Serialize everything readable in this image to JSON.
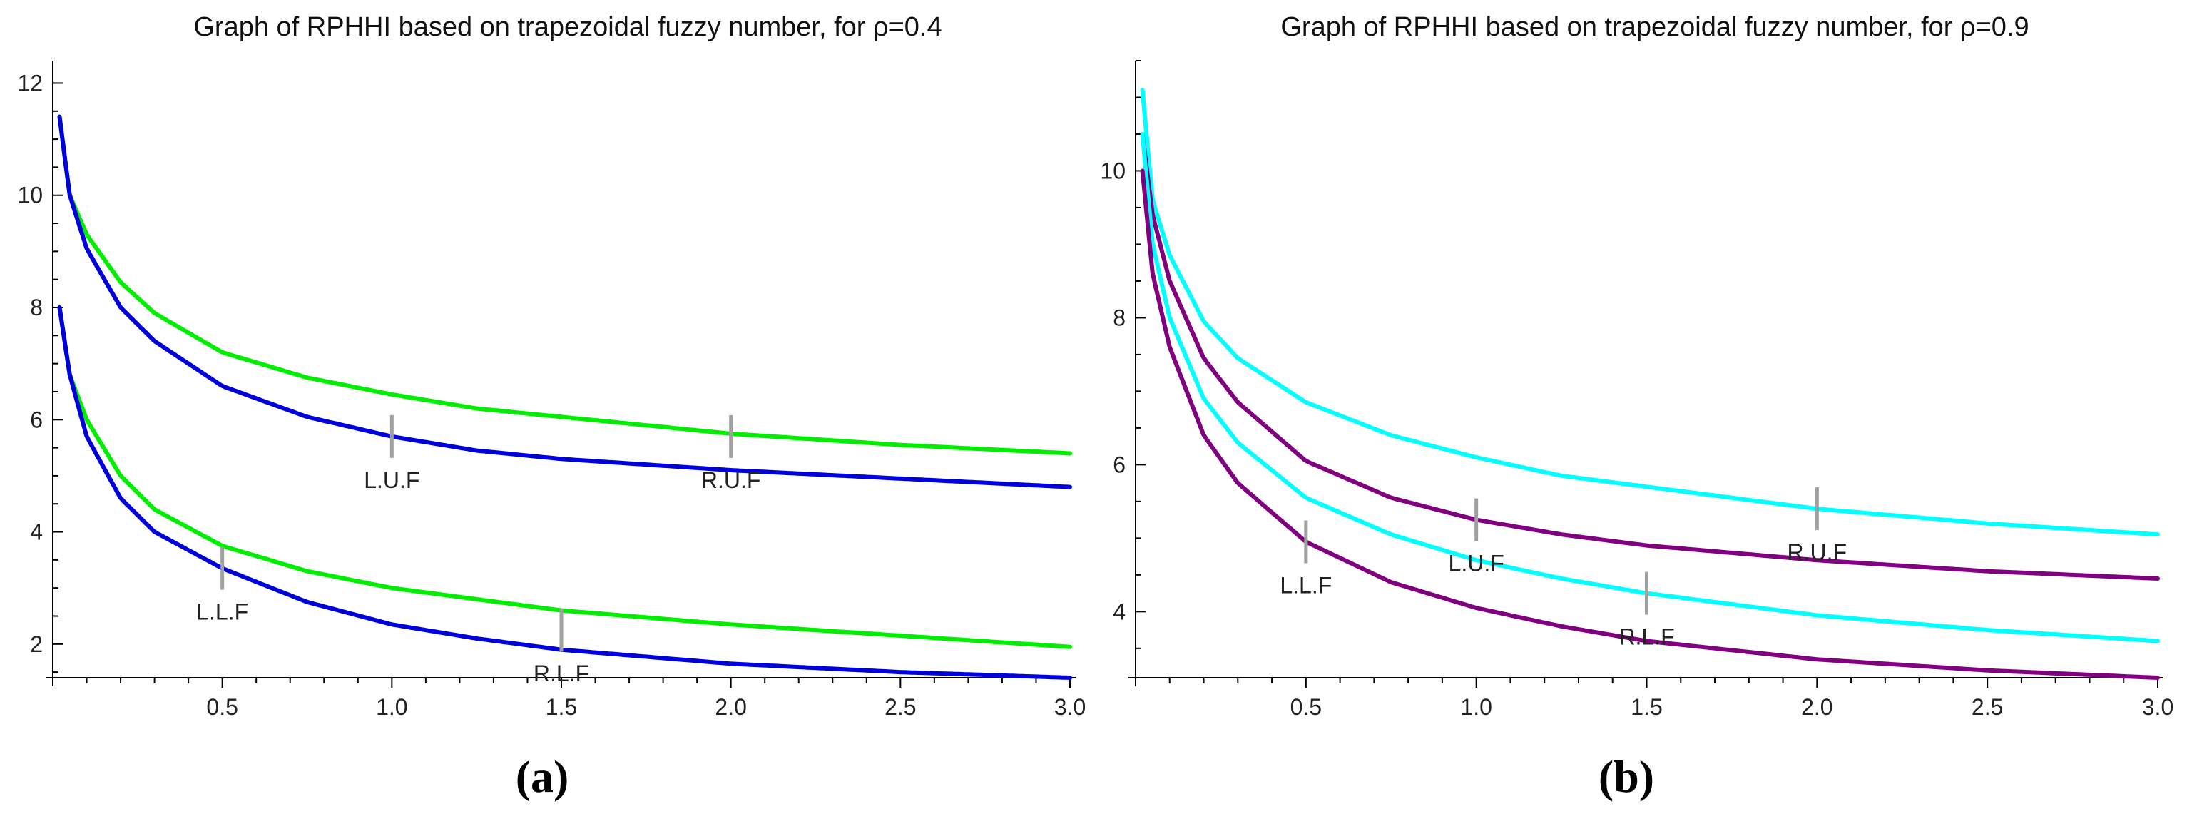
{
  "chart_data": [
    {
      "type": "line",
      "panel_label": "a",
      "title": "Graph of RPHHI based on trapezoidal fuzzy number, for ρ=0.4",
      "xlabel": "",
      "ylabel": "",
      "xlim": [
        0,
        3.0
      ],
      "ylim": [
        1.4,
        12.4
      ],
      "xticks": [
        0.5,
        1.0,
        1.5,
        2.0,
        2.5,
        3.0
      ],
      "xtick_labels": [
        "0.5",
        "1.0",
        "1.5",
        "2.0",
        "2.5",
        "3.0"
      ],
      "yticks": [
        2,
        4,
        6,
        8,
        10,
        12
      ],
      "ytick_labels": [
        "2",
        "4",
        "6",
        "8",
        "10",
        "12"
      ],
      "series": [
        {
          "name": "upper green",
          "color": "#00ee00",
          "x": [
            0.02,
            0.05,
            0.1,
            0.2,
            0.3,
            0.5,
            0.75,
            1.0,
            1.25,
            1.5,
            2.0,
            2.5,
            3.0
          ],
          "y": [
            11.4,
            10.0,
            9.3,
            8.45,
            7.9,
            7.2,
            6.75,
            6.45,
            6.2,
            6.05,
            5.75,
            5.55,
            5.4
          ]
        },
        {
          "name": "upper blue",
          "color": "#0000dd",
          "x": [
            0.02,
            0.05,
            0.1,
            0.2,
            0.3,
            0.5,
            0.75,
            1.0,
            1.25,
            1.5,
            2.0,
            2.5,
            3.0
          ],
          "y": [
            11.4,
            10.0,
            9.05,
            8.0,
            7.4,
            6.6,
            6.05,
            5.7,
            5.45,
            5.3,
            5.1,
            4.95,
            4.8
          ]
        },
        {
          "name": "lower green",
          "color": "#00ee00",
          "x": [
            0.02,
            0.05,
            0.1,
            0.2,
            0.3,
            0.5,
            0.75,
            1.0,
            1.25,
            1.5,
            2.0,
            2.5,
            3.0
          ],
          "y": [
            8.0,
            6.8,
            6.0,
            5.0,
            4.4,
            3.75,
            3.3,
            3.0,
            2.8,
            2.6,
            2.35,
            2.15,
            1.95
          ]
        },
        {
          "name": "lower blue",
          "color": "#0000dd",
          "x": [
            0.02,
            0.05,
            0.1,
            0.2,
            0.3,
            0.5,
            0.75,
            1.0,
            1.25,
            1.5,
            2.0,
            2.5,
            3.0
          ],
          "y": [
            8.0,
            6.8,
            5.7,
            4.6,
            4.0,
            3.35,
            2.75,
            2.35,
            2.1,
            1.9,
            1.65,
            1.5,
            1.4
          ]
        }
      ],
      "annotations": [
        {
          "text": "L.U.F",
          "x": 1.0,
          "y": 5.7
        },
        {
          "text": "R.U.F",
          "x": 2.0,
          "y": 5.7
        },
        {
          "text": "L.L.F",
          "x": 0.5,
          "y": 3.35
        },
        {
          "text": "R.L.F",
          "x": 1.5,
          "y": 2.25
        }
      ]
    },
    {
      "type": "line",
      "panel_label": "b",
      "title": "Graph of RPHHI based on trapezoidal fuzzy number, for ρ=0.9",
      "xlabel": "",
      "ylabel": "",
      "xlim": [
        0,
        3.0
      ],
      "ylim": [
        3.1,
        11.5
      ],
      "xticks": [
        0.5,
        1.0,
        1.5,
        2.0,
        2.5,
        3.0
      ],
      "xtick_labels": [
        "0.5",
        "1.0",
        "1.5",
        "2.0",
        "2.5",
        "3.0"
      ],
      "yticks": [
        4,
        6,
        8,
        10
      ],
      "ytick_labels": [
        "4",
        "6",
        "8",
        "10"
      ],
      "series": [
        {
          "name": "upper cyan",
          "color": "#00ffff",
          "x": [
            0.02,
            0.05,
            0.1,
            0.2,
            0.3,
            0.5,
            0.75,
            1.0,
            1.25,
            1.5,
            2.0,
            2.5,
            3.0
          ],
          "y": [
            11.1,
            9.6,
            8.85,
            7.95,
            7.45,
            6.85,
            6.4,
            6.1,
            5.85,
            5.7,
            5.4,
            5.2,
            5.05
          ]
        },
        {
          "name": "upper purple",
          "color": "#800080",
          "x": [
            0.02,
            0.05,
            0.1,
            0.2,
            0.3,
            0.5,
            0.75,
            1.0,
            1.25,
            1.5,
            2.0,
            2.5,
            3.0
          ],
          "y": [
            10.5,
            9.4,
            8.5,
            7.45,
            6.85,
            6.05,
            5.55,
            5.25,
            5.05,
            4.9,
            4.7,
            4.55,
            4.45
          ]
        },
        {
          "name": "lower cyan",
          "color": "#00ffff",
          "x": [
            0.02,
            0.05,
            0.1,
            0.2,
            0.3,
            0.5,
            0.75,
            1.0,
            1.25,
            1.5,
            2.0,
            2.5,
            3.0
          ],
          "y": [
            10.5,
            9.0,
            8.0,
            6.9,
            6.3,
            5.55,
            5.05,
            4.7,
            4.45,
            4.25,
            3.95,
            3.75,
            3.6
          ]
        },
        {
          "name": "lower purple",
          "color": "#800080",
          "x": [
            0.02,
            0.05,
            0.1,
            0.2,
            0.3,
            0.5,
            0.75,
            1.0,
            1.25,
            1.5,
            2.0,
            2.5,
            3.0
          ],
          "y": [
            10.0,
            8.6,
            7.6,
            6.4,
            5.75,
            4.95,
            4.4,
            4.05,
            3.8,
            3.6,
            3.35,
            3.2,
            3.1
          ]
        }
      ],
      "annotations": [
        {
          "text": "L.U.F",
          "x": 1.0,
          "y": 5.25
        },
        {
          "text": "R.U.F",
          "x": 2.0,
          "y": 5.4
        },
        {
          "text": "L.L.F",
          "x": 0.5,
          "y": 4.95
        },
        {
          "text": "R.L.F",
          "x": 1.5,
          "y": 4.25
        }
      ]
    }
  ]
}
